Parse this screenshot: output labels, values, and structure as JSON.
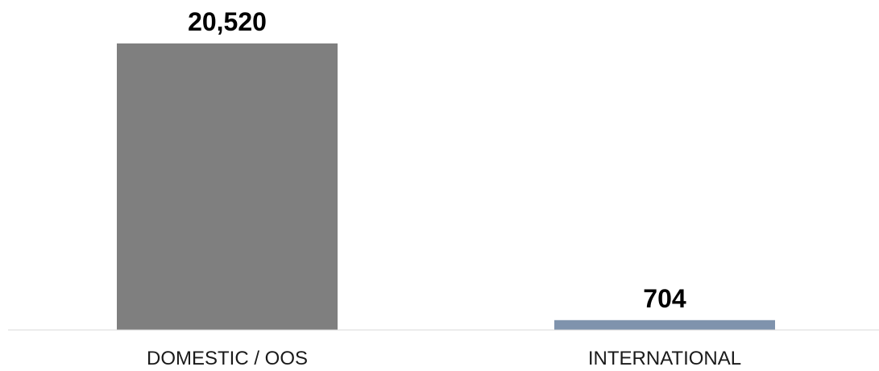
{
  "chart_data": {
    "type": "bar",
    "categories": [
      "DOMESTIC / OOS",
      "INTERNATIONAL"
    ],
    "values": [
      20520,
      704
    ],
    "data_labels": [
      "20,520",
      "704"
    ],
    "bar_colors": [
      "#7f7f7f",
      "#7f93ad"
    ],
    "axis_color": "#d9d9d9",
    "ylim": [
      0,
      20520
    ],
    "grid": false,
    "legend": "none"
  }
}
